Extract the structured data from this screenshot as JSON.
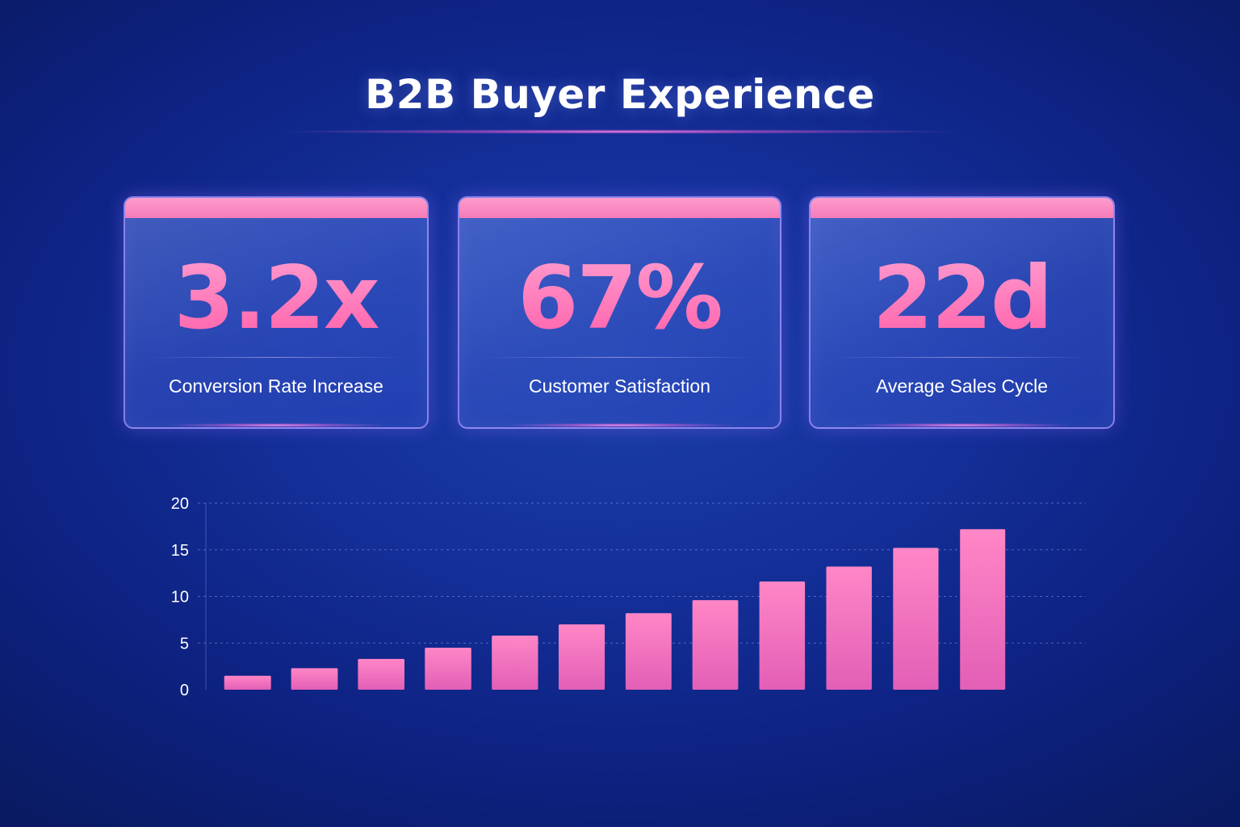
{
  "title": "B2B Buyer Experience",
  "cards": [
    {
      "value": "3.2x",
      "label": "Conversion Rate Increase"
    },
    {
      "value": "67%",
      "label": "Customer Satisfaction"
    },
    {
      "value": "22d",
      "label": "Average Sales Cycle"
    }
  ],
  "colors": {
    "background": "#14309a",
    "accent_pink": "#ff6fb5",
    "card_bar": "#f47bb9"
  },
  "chart_data": {
    "type": "bar",
    "title": "",
    "xlabel": "",
    "ylabel": "",
    "values": [
      1.5,
      2.3,
      3.3,
      4.5,
      5.8,
      7.0,
      8.2,
      9.6,
      11.6,
      13.2,
      15.2,
      17.2
    ],
    "ylim": [
      0,
      20
    ],
    "yticks": [
      0,
      5,
      10,
      15,
      20
    ],
    "grid": true
  }
}
